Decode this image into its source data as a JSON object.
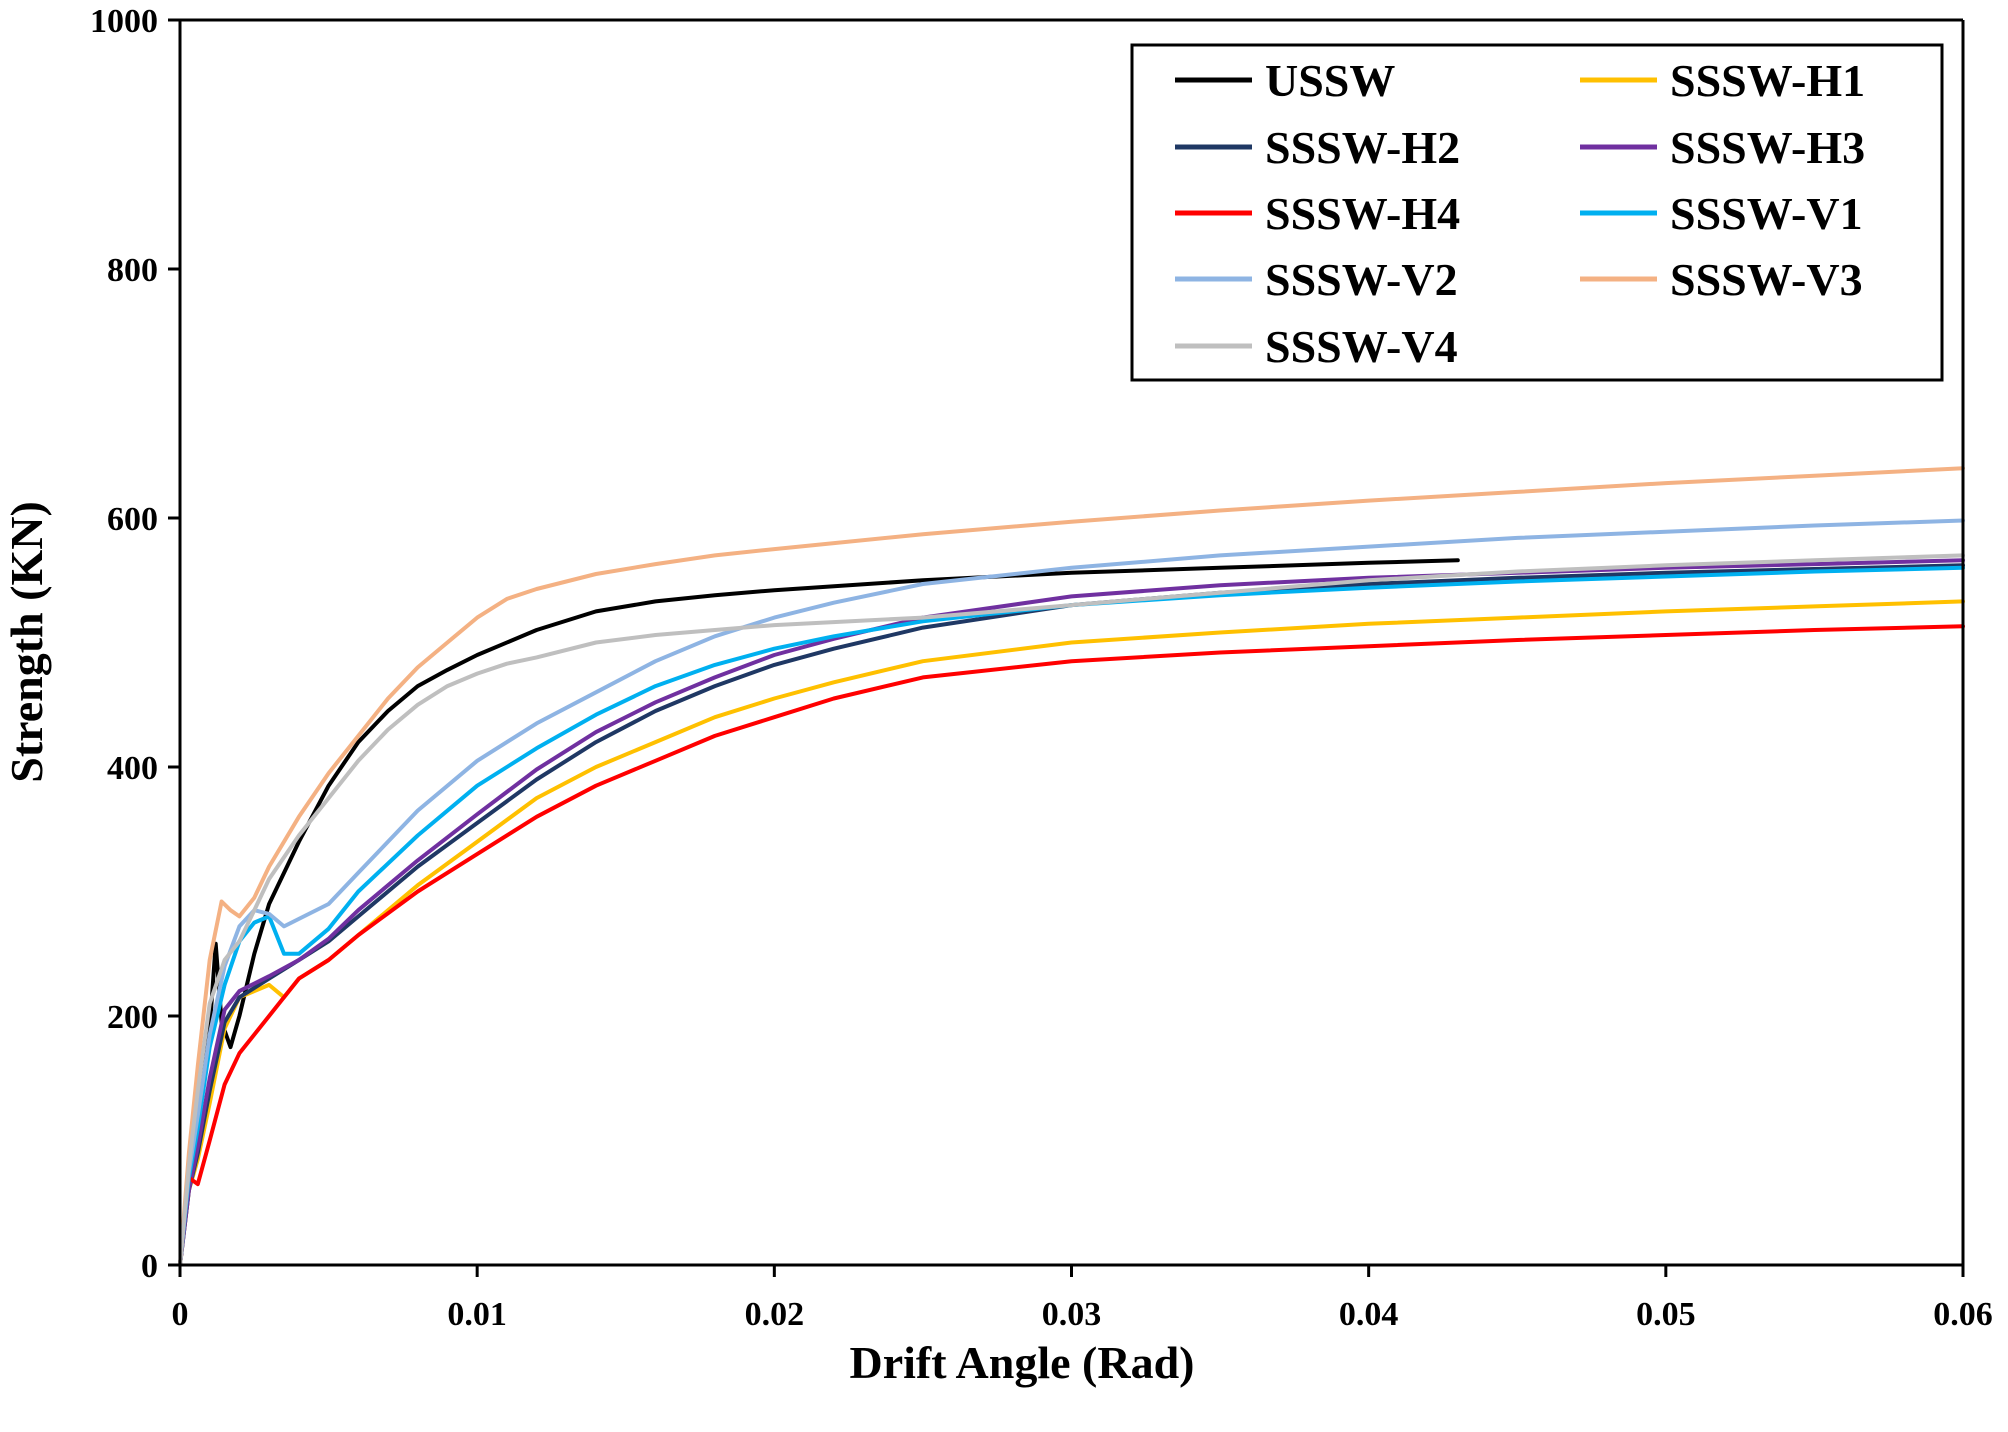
{
  "chart_data": {
    "type": "line",
    "title": "",
    "xlabel": "Drift Angle (Rad)",
    "ylabel": "Strength (KN)",
    "xlim": [
      0,
      0.06
    ],
    "ylim": [
      0,
      1000
    ],
    "xticks": [
      "0",
      "0.01",
      "0.02",
      "0.03",
      "0.04",
      "0.05",
      "0.06"
    ],
    "yticks": [
      "0",
      "200",
      "400",
      "600",
      "800",
      "1000"
    ],
    "grid": false,
    "legend_position": "top-right",
    "series": [
      {
        "name": "USSW",
        "color": "#000000",
        "points": [
          [
            0,
            0
          ],
          [
            0.0003,
            70
          ],
          [
            0.0007,
            140
          ],
          [
            0.001,
            190
          ],
          [
            0.0012,
            258
          ],
          [
            0.0014,
            195
          ],
          [
            0.0017,
            175
          ],
          [
            0.002,
            200
          ],
          [
            0.0025,
            250
          ],
          [
            0.003,
            290
          ],
          [
            0.004,
            340
          ],
          [
            0.005,
            385
          ],
          [
            0.006,
            420
          ],
          [
            0.007,
            445
          ],
          [
            0.008,
            465
          ],
          [
            0.009,
            478
          ],
          [
            0.01,
            490
          ],
          [
            0.012,
            510
          ],
          [
            0.014,
            525
          ],
          [
            0.016,
            533
          ],
          [
            0.018,
            538
          ],
          [
            0.02,
            542
          ],
          [
            0.025,
            550
          ],
          [
            0.03,
            556
          ],
          [
            0.035,
            560
          ],
          [
            0.04,
            564
          ],
          [
            0.043,
            566
          ]
        ]
      },
      {
        "name": "SSSW-H1",
        "color": "#FFC000",
        "points": [
          [
            0,
            0
          ],
          [
            0.0003,
            60
          ],
          [
            0.0006,
            85
          ],
          [
            0.001,
            130
          ],
          [
            0.0015,
            190
          ],
          [
            0.002,
            215
          ],
          [
            0.003,
            225
          ],
          [
            0.0035,
            215
          ],
          [
            0.004,
            230
          ],
          [
            0.005,
            245
          ],
          [
            0.006,
            265
          ],
          [
            0.008,
            305
          ],
          [
            0.01,
            340
          ],
          [
            0.012,
            375
          ],
          [
            0.014,
            400
          ],
          [
            0.016,
            420
          ],
          [
            0.018,
            440
          ],
          [
            0.02,
            455
          ],
          [
            0.022,
            468
          ],
          [
            0.025,
            485
          ],
          [
            0.03,
            500
          ],
          [
            0.035,
            508
          ],
          [
            0.04,
            515
          ],
          [
            0.045,
            520
          ],
          [
            0.05,
            525
          ],
          [
            0.055,
            529
          ],
          [
            0.06,
            533
          ]
        ]
      },
      {
        "name": "SSSW-H2",
        "color": "#1F3864",
        "points": [
          [
            0,
            0
          ],
          [
            0.0003,
            60
          ],
          [
            0.0006,
            90
          ],
          [
            0.001,
            140
          ],
          [
            0.0015,
            195
          ],
          [
            0.002,
            215
          ],
          [
            0.003,
            230
          ],
          [
            0.004,
            245
          ],
          [
            0.005,
            260
          ],
          [
            0.006,
            280
          ],
          [
            0.008,
            320
          ],
          [
            0.01,
            355
          ],
          [
            0.012,
            390
          ],
          [
            0.014,
            420
          ],
          [
            0.016,
            445
          ],
          [
            0.018,
            465
          ],
          [
            0.02,
            482
          ],
          [
            0.022,
            495
          ],
          [
            0.025,
            512
          ],
          [
            0.03,
            530
          ],
          [
            0.035,
            540
          ],
          [
            0.04,
            547
          ],
          [
            0.045,
            552
          ],
          [
            0.05,
            556
          ],
          [
            0.055,
            559
          ],
          [
            0.06,
            562
          ]
        ]
      },
      {
        "name": "SSSW-H3",
        "color": "#7030A0",
        "points": [
          [
            0,
            0
          ],
          [
            0.0003,
            60
          ],
          [
            0.0006,
            95
          ],
          [
            0.001,
            150
          ],
          [
            0.0015,
            205
          ],
          [
            0.002,
            220
          ],
          [
            0.003,
            232
          ],
          [
            0.004,
            245
          ],
          [
            0.005,
            262
          ],
          [
            0.006,
            285
          ],
          [
            0.008,
            325
          ],
          [
            0.01,
            362
          ],
          [
            0.012,
            398
          ],
          [
            0.014,
            428
          ],
          [
            0.016,
            452
          ],
          [
            0.018,
            472
          ],
          [
            0.02,
            490
          ],
          [
            0.022,
            503
          ],
          [
            0.025,
            520
          ],
          [
            0.03,
            537
          ],
          [
            0.035,
            546
          ],
          [
            0.04,
            552
          ],
          [
            0.045,
            556
          ],
          [
            0.05,
            560
          ],
          [
            0.055,
            563
          ],
          [
            0.06,
            566
          ]
        ]
      },
      {
        "name": "SSSW-H4",
        "color": "#FF0000",
        "points": [
          [
            0,
            0
          ],
          [
            0.0003,
            70
          ],
          [
            0.0006,
            65
          ],
          [
            0.001,
            100
          ],
          [
            0.0015,
            145
          ],
          [
            0.002,
            170
          ],
          [
            0.003,
            200
          ],
          [
            0.0035,
            215
          ],
          [
            0.004,
            230
          ],
          [
            0.005,
            245
          ],
          [
            0.006,
            265
          ],
          [
            0.008,
            300
          ],
          [
            0.01,
            330
          ],
          [
            0.012,
            360
          ],
          [
            0.014,
            385
          ],
          [
            0.016,
            405
          ],
          [
            0.018,
            425
          ],
          [
            0.02,
            440
          ],
          [
            0.022,
            455
          ],
          [
            0.025,
            472
          ],
          [
            0.03,
            485
          ],
          [
            0.035,
            492
          ],
          [
            0.04,
            497
          ],
          [
            0.045,
            502
          ],
          [
            0.05,
            506
          ],
          [
            0.055,
            510
          ],
          [
            0.06,
            513
          ]
        ]
      },
      {
        "name": "SSSW-V1",
        "color": "#00B0F0",
        "points": [
          [
            0,
            0
          ],
          [
            0.0003,
            70
          ],
          [
            0.0006,
            110
          ],
          [
            0.001,
            175
          ],
          [
            0.0015,
            225
          ],
          [
            0.002,
            260
          ],
          [
            0.0025,
            275
          ],
          [
            0.003,
            280
          ],
          [
            0.0035,
            250
          ],
          [
            0.004,
            250
          ],
          [
            0.005,
            270
          ],
          [
            0.006,
            300
          ],
          [
            0.008,
            345
          ],
          [
            0.01,
            385
          ],
          [
            0.012,
            415
          ],
          [
            0.014,
            442
          ],
          [
            0.016,
            465
          ],
          [
            0.018,
            482
          ],
          [
            0.02,
            495
          ],
          [
            0.022,
            505
          ],
          [
            0.025,
            517
          ],
          [
            0.03,
            530
          ],
          [
            0.035,
            538
          ],
          [
            0.04,
            544
          ],
          [
            0.045,
            549
          ],
          [
            0.05,
            553
          ],
          [
            0.055,
            557
          ],
          [
            0.06,
            560
          ]
        ]
      },
      {
        "name": "SSSW-V2",
        "color": "#8EB4E3",
        "points": [
          [
            0,
            0
          ],
          [
            0.0003,
            75
          ],
          [
            0.0006,
            120
          ],
          [
            0.001,
            185
          ],
          [
            0.0015,
            240
          ],
          [
            0.002,
            272
          ],
          [
            0.0025,
            285
          ],
          [
            0.003,
            282
          ],
          [
            0.0035,
            272
          ],
          [
            0.004,
            278
          ],
          [
            0.005,
            290
          ],
          [
            0.006,
            315
          ],
          [
            0.008,
            365
          ],
          [
            0.01,
            405
          ],
          [
            0.012,
            435
          ],
          [
            0.014,
            460
          ],
          [
            0.016,
            485
          ],
          [
            0.018,
            505
          ],
          [
            0.02,
            520
          ],
          [
            0.022,
            532
          ],
          [
            0.025,
            547
          ],
          [
            0.03,
            560
          ],
          [
            0.035,
            570
          ],
          [
            0.04,
            577
          ],
          [
            0.045,
            584
          ],
          [
            0.05,
            589
          ],
          [
            0.055,
            594
          ],
          [
            0.06,
            598
          ]
        ]
      },
      {
        "name": "SSSW-V3",
        "color": "#F4B183",
        "points": [
          [
            0,
            0
          ],
          [
            0.0003,
            90
          ],
          [
            0.0006,
            160
          ],
          [
            0.001,
            245
          ],
          [
            0.0014,
            292
          ],
          [
            0.0017,
            285
          ],
          [
            0.002,
            280
          ],
          [
            0.0025,
            295
          ],
          [
            0.003,
            320
          ],
          [
            0.004,
            360
          ],
          [
            0.005,
            395
          ],
          [
            0.006,
            425
          ],
          [
            0.007,
            455
          ],
          [
            0.008,
            480
          ],
          [
            0.009,
            500
          ],
          [
            0.01,
            520
          ],
          [
            0.011,
            535
          ],
          [
            0.012,
            543
          ],
          [
            0.014,
            555
          ],
          [
            0.016,
            563
          ],
          [
            0.018,
            570
          ],
          [
            0.02,
            575
          ],
          [
            0.025,
            587
          ],
          [
            0.03,
            597
          ],
          [
            0.035,
            606
          ],
          [
            0.04,
            614
          ],
          [
            0.045,
            621
          ],
          [
            0.05,
            628
          ],
          [
            0.055,
            634
          ],
          [
            0.06,
            640
          ]
        ]
      },
      {
        "name": "SSSW-V4",
        "color": "#BFBFBF",
        "points": [
          [
            0,
            0
          ],
          [
            0.0003,
            80
          ],
          [
            0.0006,
            140
          ],
          [
            0.001,
            210
          ],
          [
            0.0015,
            245
          ],
          [
            0.002,
            260
          ],
          [
            0.0025,
            285
          ],
          [
            0.003,
            310
          ],
          [
            0.004,
            345
          ],
          [
            0.005,
            375
          ],
          [
            0.006,
            405
          ],
          [
            0.007,
            430
          ],
          [
            0.008,
            450
          ],
          [
            0.009,
            465
          ],
          [
            0.01,
            475
          ],
          [
            0.011,
            483
          ],
          [
            0.012,
            488
          ],
          [
            0.014,
            500
          ],
          [
            0.016,
            506
          ],
          [
            0.018,
            510
          ],
          [
            0.02,
            514
          ],
          [
            0.025,
            520
          ],
          [
            0.03,
            530
          ],
          [
            0.035,
            540
          ],
          [
            0.04,
            550
          ],
          [
            0.045,
            557
          ],
          [
            0.05,
            562
          ],
          [
            0.055,
            566
          ],
          [
            0.06,
            570
          ]
        ]
      }
    ]
  }
}
